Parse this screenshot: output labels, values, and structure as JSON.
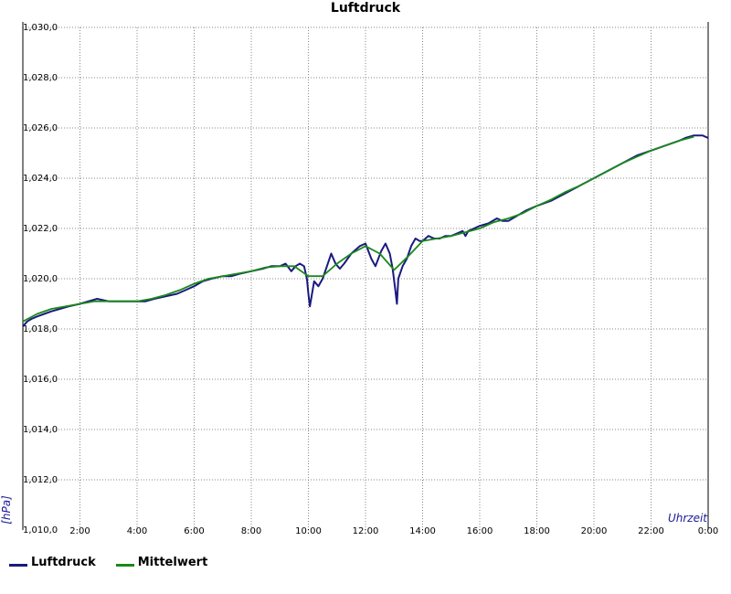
{
  "chart_data": {
    "type": "line",
    "title": "Luftdruck",
    "xlabel": "Uhrzeit",
    "ylabel": "[hPa]",
    "xlim": [
      0,
      24
    ],
    "ylim": [
      1010,
      1030
    ],
    "y_ticks": [
      "1,010,0",
      "1,012,0",
      "1,014,0",
      "1,016,0",
      "1,018,0",
      "1,020,0",
      "1,022,0",
      "1,024,0",
      "1,026,0",
      "1,028,0",
      "1,030,0"
    ],
    "x_ticks": [
      "2:00",
      "4:00",
      "6:00",
      "8:00",
      "10:00",
      "12:00",
      "14:00",
      "16:00",
      "18:00",
      "20:00",
      "22:00",
      "0:00"
    ],
    "grid": true,
    "legend_position": "bottom-left",
    "series": [
      {
        "name": "Luftdruck",
        "color": "#1a1a80",
        "x": [
          0.0,
          0.15,
          0.3,
          0.5,
          0.75,
          1.0,
          1.3,
          1.6,
          2.0,
          2.3,
          2.6,
          3.0,
          3.4,
          3.7,
          4.0,
          4.3,
          4.6,
          5.0,
          5.4,
          5.8,
          6.0,
          6.3,
          6.6,
          7.0,
          7.3,
          7.6,
          8.0,
          8.4,
          8.7,
          9.0,
          9.2,
          9.4,
          9.55,
          9.7,
          9.85,
          9.95,
          10.0,
          10.05,
          10.2,
          10.35,
          10.5,
          10.65,
          10.8,
          10.95,
          11.1,
          11.25,
          11.5,
          11.8,
          12.0,
          12.2,
          12.35,
          12.55,
          12.7,
          12.85,
          12.95,
          13.05,
          13.1,
          13.15,
          13.3,
          13.45,
          13.6,
          13.75,
          13.9,
          14.0,
          14.2,
          14.4,
          14.6,
          14.8,
          15.0,
          15.2,
          15.4,
          15.5,
          15.6,
          15.8,
          16.0,
          16.3,
          16.6,
          16.8,
          17.0,
          17.3,
          17.6,
          18.0,
          18.5,
          19.0,
          19.5,
          20.0,
          20.5,
          21.0,
          21.5,
          22.0,
          22.5,
          23.0,
          23.2,
          23.5,
          23.8,
          24.0
        ],
        "y": [
          1018.1,
          1018.3,
          1018.4,
          1018.5,
          1018.6,
          1018.7,
          1018.8,
          1018.9,
          1019.0,
          1019.1,
          1019.2,
          1019.1,
          1019.1,
          1019.1,
          1019.1,
          1019.1,
          1019.2,
          1019.3,
          1019.4,
          1019.6,
          1019.7,
          1019.9,
          1020.0,
          1020.1,
          1020.1,
          1020.2,
          1020.3,
          1020.4,
          1020.5,
          1020.5,
          1020.6,
          1020.3,
          1020.5,
          1020.6,
          1020.5,
          1020.0,
          1019.4,
          1018.9,
          1019.9,
          1019.7,
          1020.0,
          1020.5,
          1021.0,
          1020.6,
          1020.4,
          1020.6,
          1021.0,
          1021.3,
          1021.4,
          1020.8,
          1020.5,
          1021.1,
          1021.4,
          1021.0,
          1020.4,
          1019.5,
          1019.0,
          1020.0,
          1020.5,
          1020.8,
          1021.3,
          1021.6,
          1021.5,
          1021.5,
          1021.7,
          1021.6,
          1021.6,
          1021.7,
          1021.7,
          1021.8,
          1021.9,
          1021.7,
          1021.9,
          1022.0,
          1022.1,
          1022.2,
          1022.4,
          1022.3,
          1022.3,
          1022.5,
          1022.7,
          1022.9,
          1023.1,
          1023.4,
          1023.7,
          1024.0,
          1024.3,
          1024.6,
          1024.9,
          1025.1,
          1025.3,
          1025.5,
          1025.6,
          1025.7,
          1025.7,
          1025.6
        ]
      },
      {
        "name": "Mittelwert",
        "color": "#1a8a1a",
        "x": [
          0.0,
          0.5,
          1.0,
          1.5,
          2.0,
          2.5,
          3.0,
          3.5,
          4.0,
          4.5,
          5.0,
          5.5,
          6.0,
          6.5,
          7.0,
          7.5,
          8.0,
          8.5,
          9.0,
          9.5,
          10.0,
          10.5,
          11.0,
          11.5,
          12.0,
          12.5,
          13.0,
          13.5,
          14.0,
          14.5,
          15.0,
          15.5,
          16.0,
          16.5,
          17.0,
          17.5,
          18.0,
          18.5,
          19.0,
          19.5,
          20.0,
          20.5,
          21.0,
          21.5,
          22.0,
          22.5,
          23.0,
          23.5
        ],
        "y": [
          1018.3,
          1018.6,
          1018.8,
          1018.9,
          1019.0,
          1019.1,
          1019.1,
          1019.1,
          1019.1,
          1019.2,
          1019.35,
          1019.55,
          1019.8,
          1020.0,
          1020.1,
          1020.2,
          1020.3,
          1020.45,
          1020.5,
          1020.5,
          1020.1,
          1020.1,
          1020.6,
          1021.0,
          1021.3,
          1021.0,
          1020.35,
          1020.9,
          1021.5,
          1021.6,
          1021.7,
          1021.85,
          1022.0,
          1022.25,
          1022.4,
          1022.6,
          1022.9,
          1023.15,
          1023.45,
          1023.7,
          1024.0,
          1024.3,
          1024.6,
          1024.85,
          1025.1,
          1025.3,
          1025.5,
          1025.65
        ]
      }
    ]
  }
}
